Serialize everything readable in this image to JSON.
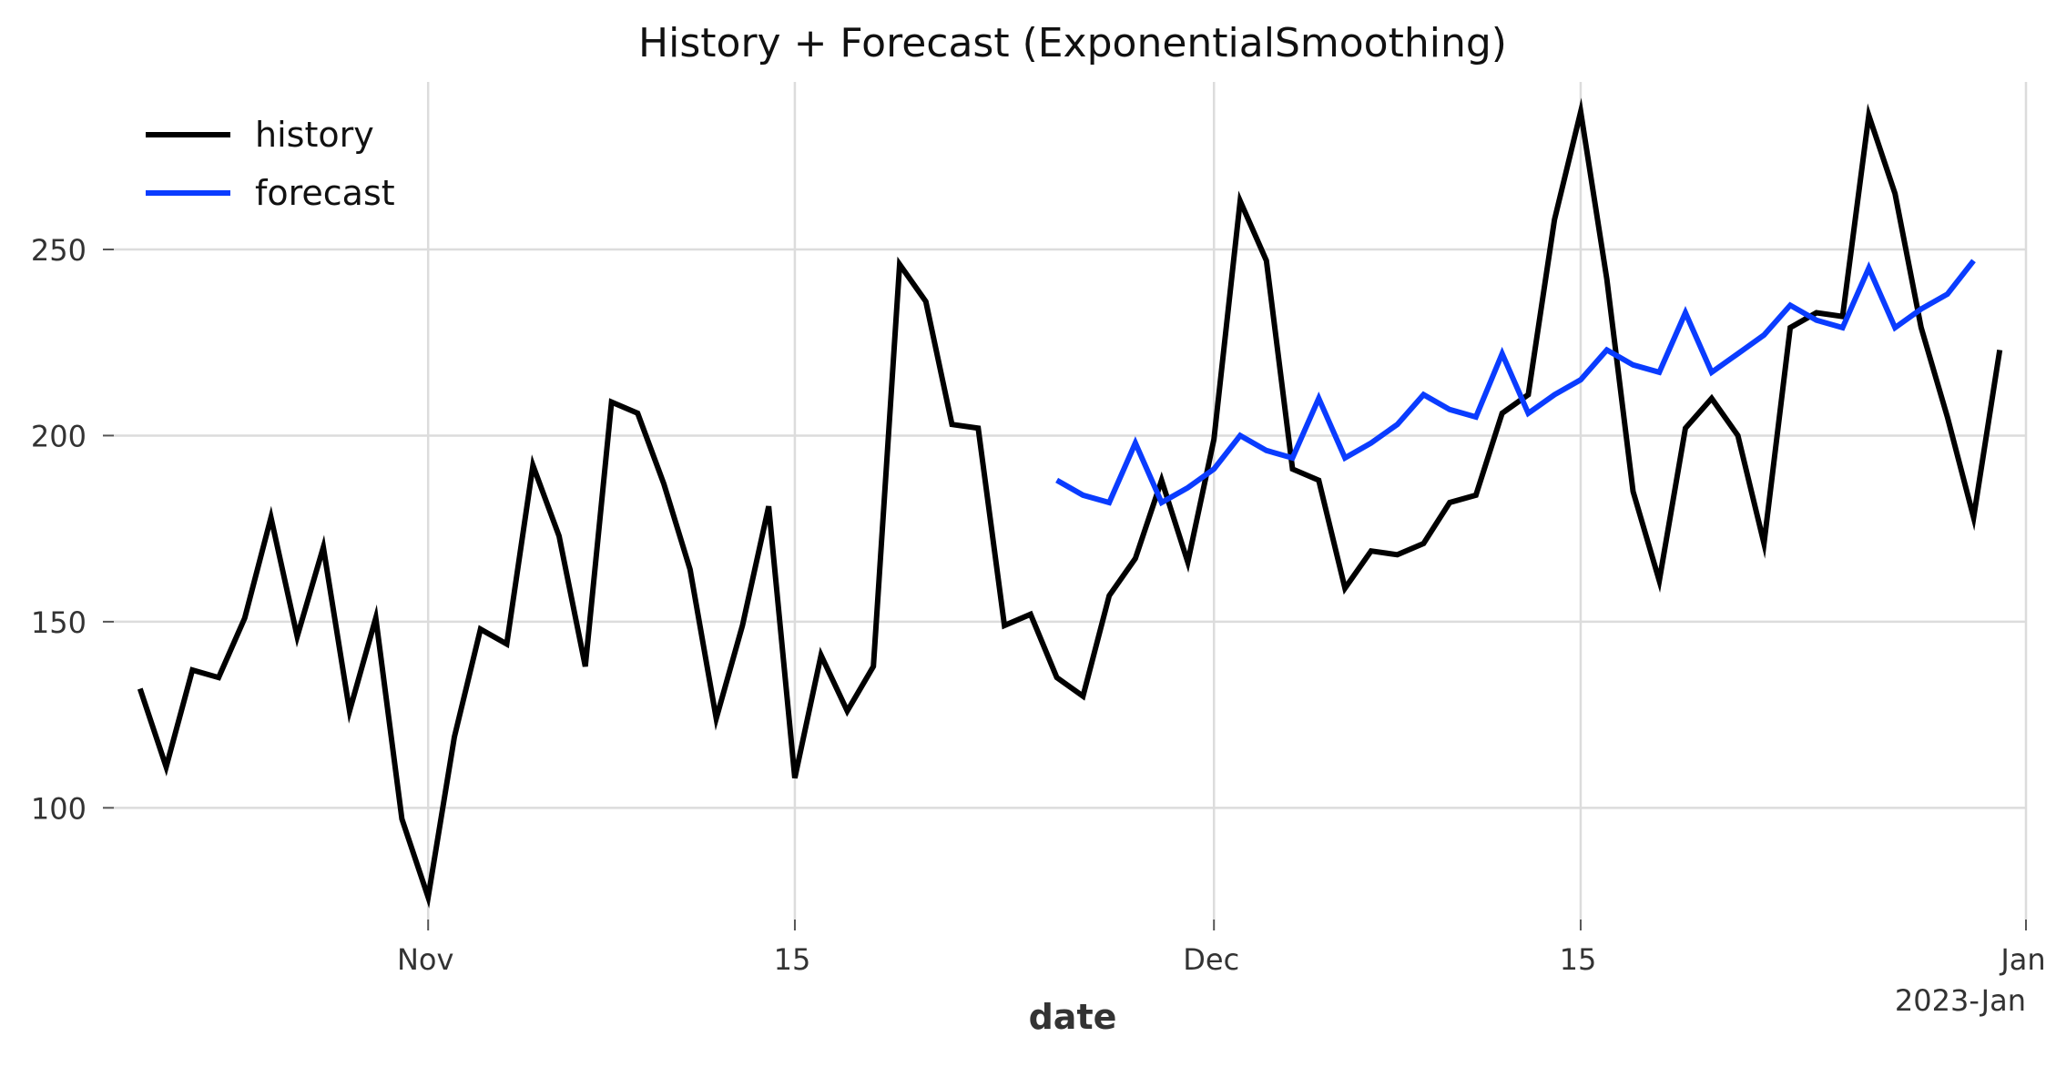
{
  "chart_data": {
    "type": "line",
    "title": "History + Forecast (ExponentialSmoothing)",
    "xlabel": "date",
    "ylabel": "",
    "x_range": [
      "2022-10-20",
      "2023-01-01"
    ],
    "ylim": [
      70,
      295
    ],
    "grid": true,
    "legend_position": "top-left",
    "y_ticks": [
      100,
      150,
      200,
      250
    ],
    "x_ticks": [
      {
        "date": "2022-11-01",
        "label": "Nov",
        "sublabel": ""
      },
      {
        "date": "2022-11-15",
        "label": "15",
        "sublabel": ""
      },
      {
        "date": "2022-12-01",
        "label": "Dec",
        "sublabel": ""
      },
      {
        "date": "2022-12-15",
        "label": "15",
        "sublabel": ""
      },
      {
        "date": "2023-01-01",
        "label": "Jan",
        "sublabel": "2023-Jan"
      }
    ],
    "series": [
      {
        "name": "history",
        "color": "#000000",
        "start_date": "2022-10-21",
        "values": [
          132,
          111,
          137,
          135,
          151,
          178,
          146,
          170,
          126,
          151,
          97,
          76,
          119,
          148,
          144,
          192,
          173,
          138,
          209,
          206,
          187,
          164,
          124,
          149,
          181,
          108,
          141,
          126,
          138,
          246,
          236,
          203,
          202,
          149,
          152,
          135,
          130,
          157,
          167,
          188,
          166,
          199,
          263,
          247,
          191,
          188,
          159,
          169,
          168,
          171,
          182,
          184,
          206,
          211,
          258,
          287,
          242,
          185,
          161,
          202,
          210,
          200,
          171,
          229,
          233,
          232,
          286,
          265,
          229,
          205,
          178,
          223
        ]
      },
      {
        "name": "forecast",
        "color": "#0a3cff",
        "start_date": "2022-11-25",
        "values": [
          188,
          184,
          182,
          198,
          182,
          186,
          191,
          200,
          196,
          194,
          210,
          194,
          198,
          203,
          211,
          207,
          205,
          222,
          206,
          211,
          215,
          223,
          219,
          217,
          233,
          217,
          222,
          227,
          235,
          231,
          229,
          245,
          229,
          234,
          238,
          247
        ]
      }
    ]
  }
}
